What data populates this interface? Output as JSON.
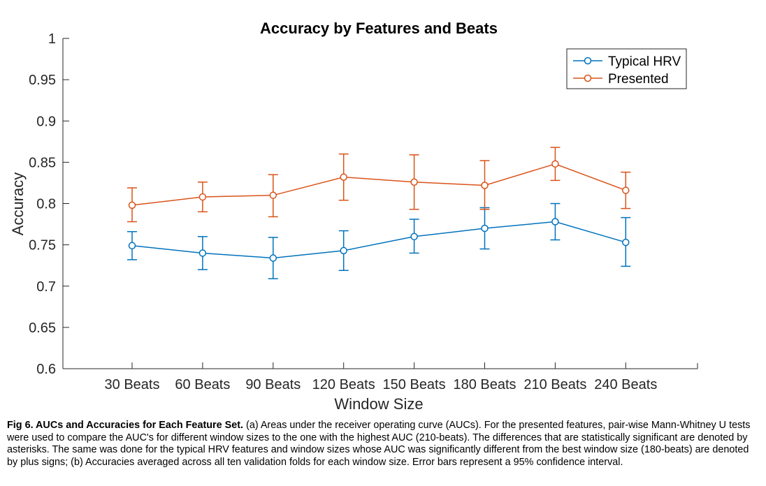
{
  "chart_data": {
    "type": "line",
    "title": "Accuracy by Features and Beats",
    "xlabel": "Window Size",
    "ylabel": "Accuracy",
    "categories": [
      "30 Beats",
      "60 Beats",
      "90 Beats",
      "120 Beats",
      "150 Beats",
      "180 Beats",
      "210 Beats",
      "240 Beats"
    ],
    "ylim": [
      0.6,
      1
    ],
    "yticks": [
      "0.6",
      "0.65",
      "0.7",
      "0.75",
      "0.8",
      "0.85",
      "0.9",
      "0.95",
      "1"
    ],
    "grid": false,
    "legend_position": "top-right",
    "series": [
      {
        "name": "Typical HRV",
        "color": "#0072BD",
        "values": [
          0.749,
          0.74,
          0.734,
          0.743,
          0.76,
          0.77,
          0.778,
          0.753
        ],
        "err_low": [
          0.732,
          0.72,
          0.709,
          0.719,
          0.74,
          0.745,
          0.756,
          0.724
        ],
        "err_high": [
          0.766,
          0.76,
          0.759,
          0.767,
          0.781,
          0.795,
          0.8,
          0.783
        ]
      },
      {
        "name": "Presented",
        "color": "#D95319",
        "values": [
          0.798,
          0.808,
          0.81,
          0.832,
          0.826,
          0.822,
          0.848,
          0.816
        ],
        "err_low": [
          0.778,
          0.79,
          0.784,
          0.804,
          0.793,
          0.793,
          0.828,
          0.794
        ],
        "err_high": [
          0.819,
          0.826,
          0.835,
          0.86,
          0.859,
          0.852,
          0.868,
          0.838
        ]
      }
    ]
  },
  "caption": {
    "label": "Fig 6. AUCs and Accuracies for Each Feature Set.",
    "text": " (a) Areas under the receiver operating curve (AUCs). For the presented features, pair-wise Mann-Whitney U tests were used to compare the AUC's for different window sizes to the one with the highest AUC (210-beats). The differences that are statistically significant are denoted by asterisks. The same was done for the typical HRV features and window sizes whose AUC was significantly different from the best window size (180-beats) are denoted by plus signs; (b) Accuracies averaged across all ten validation folds for each window size. Error bars represent a 95% confidence interval."
  }
}
